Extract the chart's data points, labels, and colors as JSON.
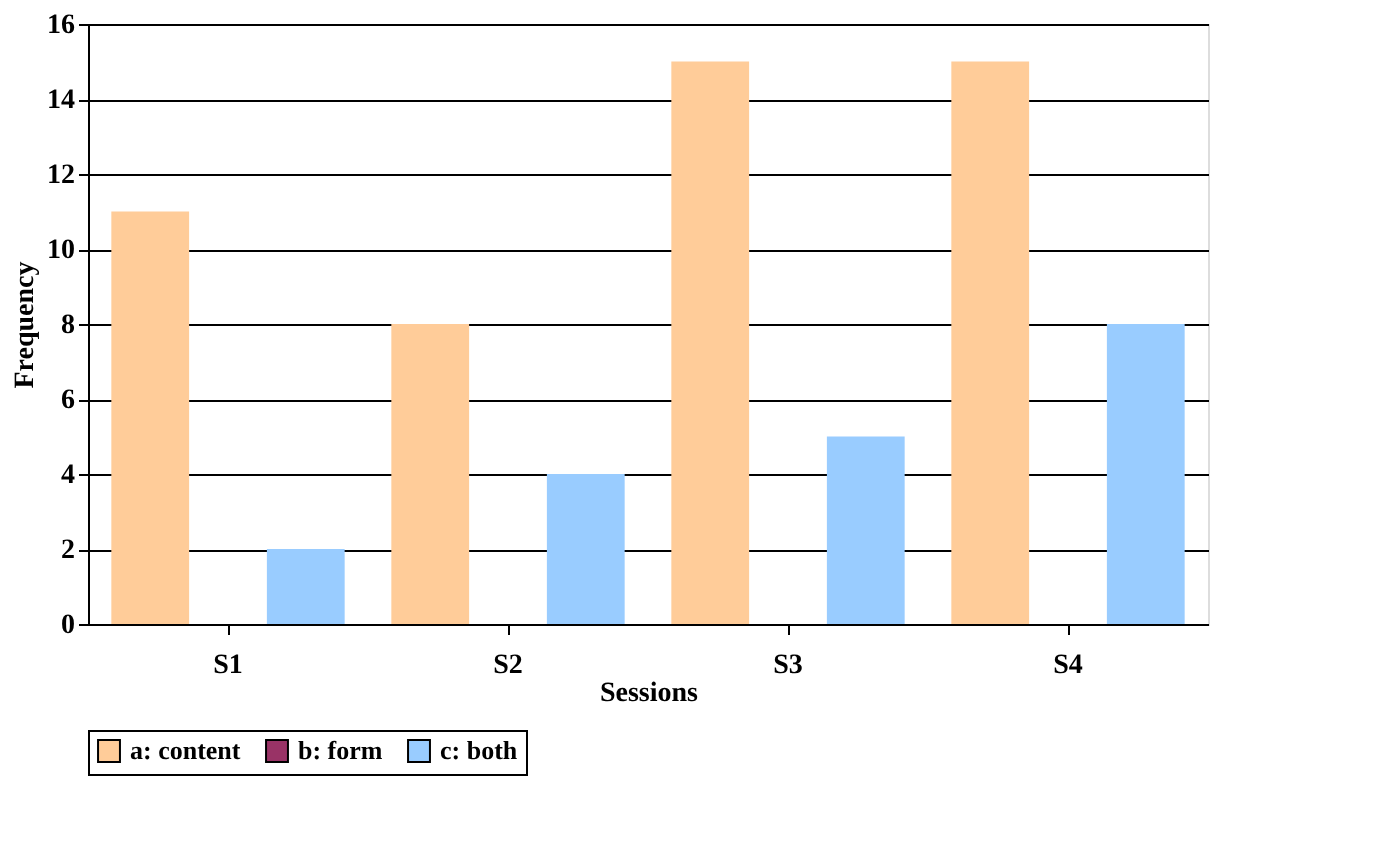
{
  "chart_data": {
    "type": "bar",
    "xlabel": "Sessions",
    "ylabel": "Frequency",
    "categories": [
      "S1",
      "S2",
      "S3",
      "S4"
    ],
    "series": [
      {
        "name": "a: content",
        "color": "#ffcc99",
        "values": [
          11,
          8,
          15,
          15
        ]
      },
      {
        "name": "b: form",
        "color": "#993366",
        "values": [
          0,
          0,
          0,
          0
        ]
      },
      {
        "name": "c: both",
        "color": "#99ccff",
        "values": [
          2,
          4,
          5,
          8
        ]
      }
    ],
    "ylim": [
      0,
      16
    ],
    "yticks": [
      0,
      2,
      4,
      6,
      8,
      10,
      12,
      14,
      16
    ],
    "grid": "y",
    "legend": "bottom"
  }
}
